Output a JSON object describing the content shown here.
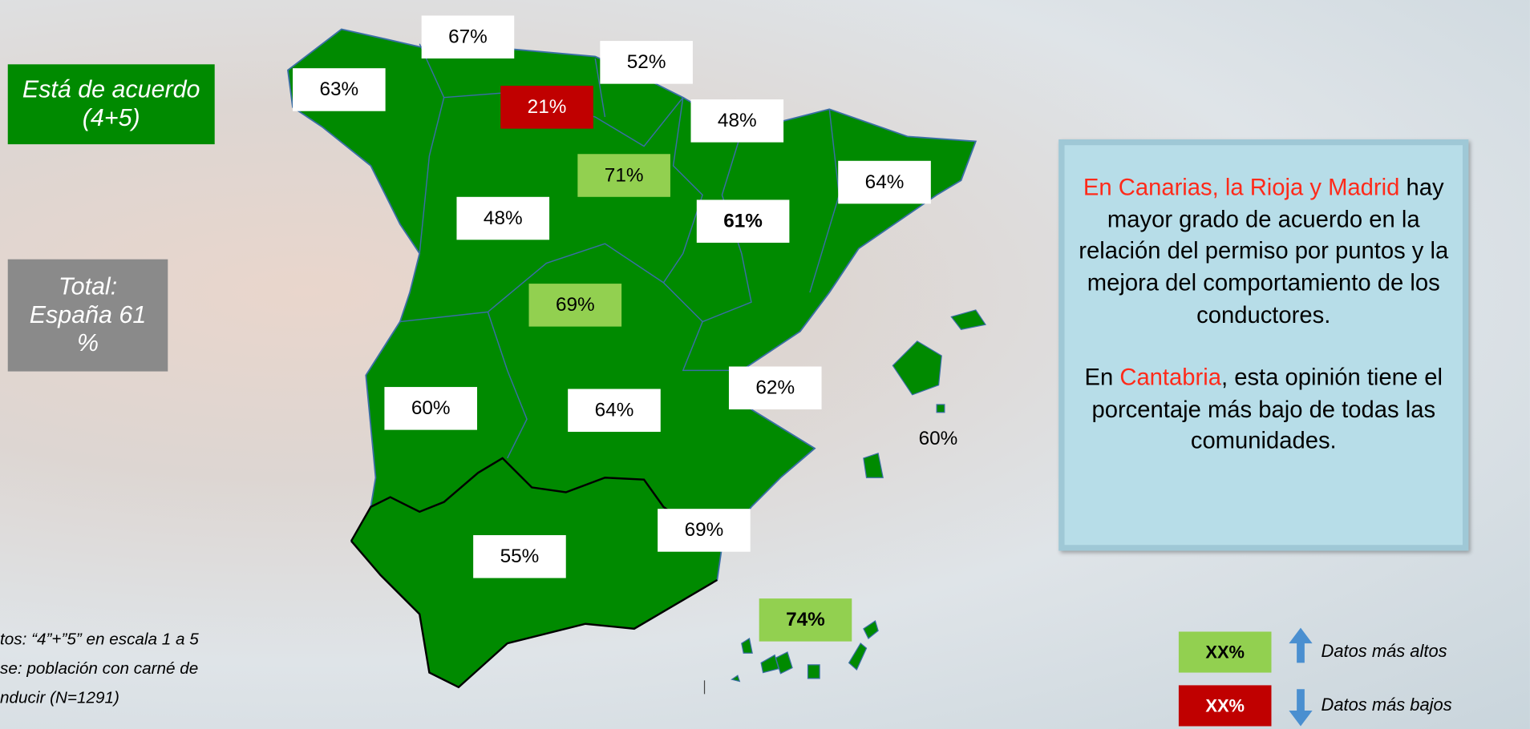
{
  "legend_title": "Está de acuerdo (4+5)",
  "total": "Total: España 61 %",
  "regions": [
    {
      "label": "67%",
      "style": "box",
      "bold": false
    },
    {
      "label": "63%",
      "style": "box",
      "bold": false
    },
    {
      "label": "52%",
      "style": "box",
      "bold": false
    },
    {
      "label": "21%",
      "style": "low",
      "bold": false
    },
    {
      "label": "48%",
      "style": "box",
      "bold": false
    },
    {
      "label": "71%",
      "style": "high",
      "bold": false
    },
    {
      "label": "64%",
      "style": "box",
      "bold": false
    },
    {
      "label": "48%",
      "style": "box",
      "bold": false
    },
    {
      "label": "61%",
      "style": "box",
      "bold": true
    },
    {
      "label": "69%",
      "style": "high",
      "bold": false
    },
    {
      "label": "62%",
      "style": "box",
      "bold": false
    },
    {
      "label": "60%",
      "style": "box",
      "bold": false
    },
    {
      "label": "64%",
      "style": "box",
      "bold": false
    },
    {
      "label": "60%",
      "style": "plain",
      "bold": false
    },
    {
      "label": "69%",
      "style": "box",
      "bold": false
    },
    {
      "label": "55%",
      "style": "box",
      "bold": false
    },
    {
      "label": "74%",
      "style": "high",
      "bold": true
    }
  ],
  "info_box": {
    "paragraphs": [
      [
        {
          "text": "En Canarias, la Rioja y Madrid",
          "red": true
        },
        {
          "text": " hay mayor grado de acuerdo en la relación del permiso por puntos y la mejora del comportamiento de los conductores.",
          "red": false
        }
      ],
      [
        {
          "text": "En ",
          "red": false
        },
        {
          "text": "Cantabria",
          "red": true
        },
        {
          "text": ", esta opinión tiene el porcentaje más bajo de todas las comunidades.",
          "red": false
        }
      ]
    ]
  },
  "notes": [
    "tos: “4”+”5” en escala 1 a 5",
    "se: población con carné  de",
    "nducir (N=1291)"
  ],
  "legend": [
    {
      "sample": "XX%",
      "text": "Datos más altos",
      "style": "high"
    },
    {
      "sample": "XX%",
      "text": "Datos más bajos",
      "style": "low"
    }
  ]
}
